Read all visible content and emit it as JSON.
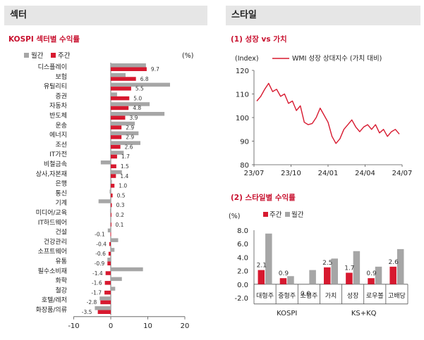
{
  "left_panel": {
    "header": "섹터",
    "subtitle": "KOSPI 섹터별 수익률"
  },
  "right_panel": {
    "header": "스타일",
    "subtitle1": "(1) 성장 vs 가치",
    "subtitle2": "(2) 스타일별 수익률"
  },
  "colors": {
    "weekly": "#d7192f",
    "monthly": "#a6a6a6",
    "line": "#d7192f",
    "accent": "#c8102e"
  },
  "chart_data": [
    {
      "type": "bar",
      "orientation": "horizontal",
      "unit_label": "(%)",
      "legend": [
        "월간",
        "주간"
      ],
      "xlim": [
        -10,
        20
      ],
      "xticks": [
        "-10",
        "0",
        "10",
        "20"
      ],
      "categories": [
        "디스플레이",
        "보험",
        "유틸리티",
        "증권",
        "자동차",
        "반도체",
        "운송",
        "에너지",
        "조선",
        "IT가전",
        "비철금속",
        "상사,자본재",
        "은행",
        "통신",
        "기계",
        "미디어/교육",
        "IT하드웨어",
        "건설",
        "건강관리",
        "소프트웨어",
        "유통",
        "필수소비재",
        "화학",
        "철강",
        "호텔/레저",
        "화장품/의류"
      ],
      "series": [
        {
          "name": "주간",
          "values": [
            9.7,
            6.8,
            5.5,
            5.0,
            4.8,
            3.9,
            2.9,
            2.9,
            2.6,
            1.7,
            1.5,
            1.4,
            1.0,
            0.5,
            0.3,
            0.2,
            0.1,
            -0.1,
            -0.4,
            -0.6,
            -0.9,
            -1.4,
            -1.6,
            -1.7,
            -2.8,
            -3.5
          ]
        },
        {
          "name": "월간",
          "values": [
            9.5,
            4.0,
            16.0,
            1.7,
            10.5,
            14.5,
            6.5,
            7.5,
            8.0,
            3.5,
            -2.7,
            3.0,
            0.3,
            -0.3,
            -3.3,
            -0.2,
            0.0,
            -0.8,
            2.0,
            1.0,
            -0.9,
            8.7,
            3.0,
            1.2,
            -3.0,
            -4.3
          ]
        }
      ],
      "data_labels": [
        "9.7",
        "6.8",
        "5.5",
        "5.0",
        "4.8",
        "3.9",
        "2.9",
        "2.9",
        "2.6",
        "1.7",
        "1.5",
        "1.4",
        "1.0",
        "0.5",
        "0.3",
        "0.2",
        "0.1",
        "-0.1",
        "-0.4",
        "-0.6",
        "-0.9",
        "-1.4",
        "-1.6",
        "-1.7",
        "-2.8",
        "-3.5"
      ]
    },
    {
      "type": "line",
      "series_name": "WMI 성장 상대지수 (가치 대비)",
      "axis_unit": "(Index)",
      "ylim": [
        80,
        120
      ],
      "yticks": [
        "80",
        "90",
        "100",
        "110",
        "120"
      ],
      "xticks": [
        "23/07",
        "23/10",
        "24/01",
        "24/04",
        "24/07"
      ],
      "points": [
        [
          "23/07",
          107
        ],
        [
          "23/07",
          109
        ],
        [
          "23/08",
          112
        ],
        [
          "23/08",
          114.5
        ],
        [
          "23/08",
          111
        ],
        [
          "23/09",
          112
        ],
        [
          "23/09",
          109
        ],
        [
          "23/09",
          110
        ],
        [
          "23/10",
          106
        ],
        [
          "23/10",
          107
        ],
        [
          "23/10",
          103
        ],
        [
          "23/11",
          105
        ],
        [
          "23/11",
          98
        ],
        [
          "23/11",
          97
        ],
        [
          "23/12",
          97.5
        ],
        [
          "23/12",
          100
        ],
        [
          "23/12",
          104
        ],
        [
          "24/01",
          101
        ],
        [
          "24/01",
          98
        ],
        [
          "24/01",
          92
        ],
        [
          "24/01",
          89
        ],
        [
          "24/02",
          91
        ],
        [
          "24/02",
          95
        ],
        [
          "24/02",
          97
        ],
        [
          "24/03",
          99
        ],
        [
          "24/03",
          96
        ],
        [
          "24/03",
          94
        ],
        [
          "24/04",
          96
        ],
        [
          "24/04",
          97
        ],
        [
          "24/04",
          95
        ],
        [
          "24/05",
          97
        ],
        [
          "24/05",
          93.5
        ],
        [
          "24/06",
          95
        ],
        [
          "24/06",
          92
        ],
        [
          "24/06",
          94
        ],
        [
          "24/07",
          95
        ],
        [
          "24/07",
          93
        ]
      ]
    },
    {
      "type": "bar",
      "unit_label": "(%)",
      "legend": [
        "주간",
        "월간"
      ],
      "ylim": [
        -2,
        8
      ],
      "yticks": [
        "-2.0",
        "0.0",
        "2.0",
        "4.0",
        "6.0",
        "8.0"
      ],
      "categories": [
        "대형주",
        "중형주",
        "소형주",
        "가치",
        "성장",
        "로우볼",
        "고배당"
      ],
      "groups": [
        {
          "label": "KOSPI",
          "span": 3
        },
        {
          "label": "KS+KQ",
          "span": 4
        }
      ],
      "series": [
        {
          "name": "주간",
          "values": [
            2.1,
            0.9,
            0.0,
            2.5,
            1.7,
            0.9,
            2.6
          ]
        },
        {
          "name": "월간",
          "values": [
            7.5,
            1.2,
            2.1,
            3.8,
            4.9,
            2.6,
            5.2
          ]
        }
      ],
      "data_labels": [
        "2.1",
        "0.9",
        "0.0",
        "2.5",
        "1.7",
        "0.9",
        "2.6"
      ]
    }
  ]
}
